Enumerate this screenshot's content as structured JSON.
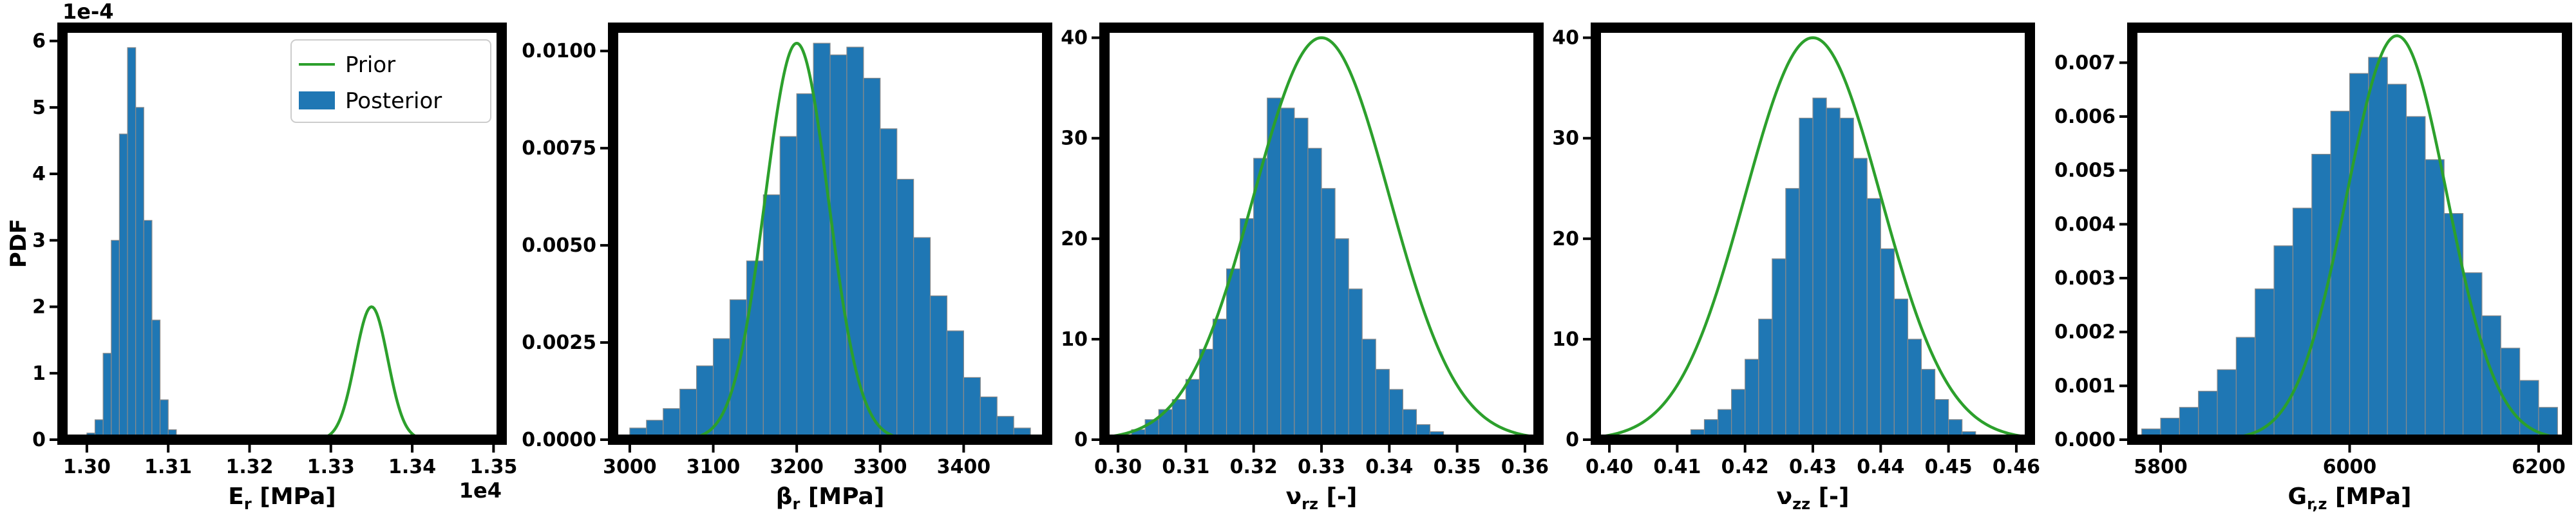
{
  "figure": {
    "ylabel": "PDF",
    "colors": {
      "posterior": "#1f77b4",
      "prior": "#2ca02c",
      "bar_edge": "#8a8a8a",
      "frame": "#000000"
    },
    "legend": {
      "prior_label": "Prior",
      "posterior_label": "Posterior",
      "placement": "upper-right of first panel"
    }
  },
  "chart_data": [
    {
      "type": "bar",
      "xlabel": "E_r [MPa]",
      "ylabel": "PDF",
      "x_offset_text": "1e4",
      "y_offset_text": "1e-4",
      "xlim": [
        1.297,
        1.351
      ],
      "ylim": [
        0,
        6.2
      ],
      "x_ticks": [
        1.3,
        1.31,
        1.32,
        1.33,
        1.34,
        1.35
      ],
      "x_tick_labels": [
        "1.30",
        "1.31",
        "1.32",
        "1.33",
        "1.34",
        "1.35"
      ],
      "y_ticks": [
        0,
        1,
        2,
        3,
        4,
        5,
        6
      ],
      "y_tick_labels": [
        "0",
        "1",
        "2",
        "3",
        "4",
        "5",
        "6"
      ],
      "posterior_hist": {
        "start": 1.3,
        "width": 0.001,
        "values": [
          0.1,
          0.3,
          1.3,
          3.0,
          4.6,
          5.9,
          5.0,
          3.3,
          1.8,
          0.6,
          0.15,
          0.05
        ]
      },
      "prior": {
        "mean": 1.335,
        "sd": 0.002,
        "peak": 2.0
      }
    },
    {
      "type": "bar",
      "xlabel": "β_r [MPa]",
      "xlim": [
        2980,
        3500
      ],
      "ylim": [
        0,
        0.0106
      ],
      "x_ticks": [
        3000,
        3100,
        3200,
        3300,
        3400
      ],
      "x_tick_labels": [
        "3000",
        "3100",
        "3200",
        "3300",
        "3400"
      ],
      "y_ticks": [
        0,
        0.0025,
        0.005,
        0.0075,
        0.01
      ],
      "y_tick_labels": [
        "0.0000",
        "0.0025",
        "0.0050",
        "0.0075",
        "0.0100"
      ],
      "posterior_hist": {
        "start": 3000,
        "width": 20,
        "values": [
          0.0003,
          0.0005,
          0.0008,
          0.0013,
          0.0019,
          0.0026,
          0.0036,
          0.0046,
          0.0063,
          0.0078,
          0.0089,
          0.0102,
          0.0099,
          0.0101,
          0.0093,
          0.008,
          0.0067,
          0.0052,
          0.0037,
          0.0028,
          0.0016,
          0.0011,
          0.0006,
          0.0003,
          0.0001
        ]
      },
      "prior": {
        "mean": 3200,
        "sd": 38,
        "peak": 0.0102
      }
    },
    {
      "type": "bar",
      "xlabel": "ν_rz [-]",
      "xlim": [
        0.298,
        0.362
      ],
      "ylim": [
        0,
        41
      ],
      "x_ticks": [
        0.3,
        0.31,
        0.32,
        0.33,
        0.34,
        0.35,
        0.36
      ],
      "x_tick_labels": [
        "0.30",
        "0.31",
        "0.32",
        "0.33",
        "0.34",
        "0.35",
        "0.36"
      ],
      "y_ticks": [
        0,
        10,
        20,
        30,
        40
      ],
      "y_tick_labels": [
        "0",
        "10",
        "20",
        "30",
        "40"
      ],
      "posterior_hist": {
        "start": 0.3,
        "width": 0.002,
        "values": [
          0.5,
          1.0,
          2.0,
          3.0,
          4.0,
          6.0,
          9.0,
          12.0,
          17.0,
          22.0,
          28.0,
          34.0,
          33.0,
          32.0,
          29.0,
          25.0,
          20.0,
          15.0,
          10.0,
          7.0,
          5.0,
          3.0,
          1.5,
          0.8,
          0.3
        ]
      },
      "prior": {
        "mean": 0.33,
        "sd": 0.01,
        "peak": 40
      }
    },
    {
      "type": "bar",
      "xlabel": "ν_zz [-]",
      "xlim": [
        0.398,
        0.462
      ],
      "ylim": [
        0,
        41
      ],
      "x_ticks": [
        0.4,
        0.41,
        0.42,
        0.43,
        0.44,
        0.45,
        0.46
      ],
      "x_tick_labels": [
        "0.40",
        "0.41",
        "0.42",
        "0.43",
        "0.44",
        "0.45",
        "0.46"
      ],
      "y_ticks": [
        0,
        10,
        20,
        30,
        40
      ],
      "y_tick_labels": [
        "0",
        "10",
        "20",
        "30",
        "40"
      ],
      "posterior_hist": {
        "start": 0.41,
        "width": 0.002,
        "values": [
          0.3,
          1.0,
          2.0,
          3.0,
          5.0,
          8.0,
          12.0,
          18.0,
          25.0,
          32.0,
          34.0,
          33.0,
          32.0,
          28.0,
          24.0,
          19.0,
          14.0,
          10.0,
          7.0,
          4.0,
          2.0,
          0.8
        ]
      },
      "prior": {
        "mean": 0.43,
        "sd": 0.01,
        "peak": 40
      }
    },
    {
      "type": "bar",
      "xlabel": "G_r,z [MPa]",
      "xlim": [
        5770,
        6230
      ],
      "ylim": [
        0,
        0.00765
      ],
      "x_ticks": [
        5800,
        6000,
        6200
      ],
      "x_tick_labels": [
        "5800",
        "6000",
        "6200"
      ],
      "y_ticks": [
        0,
        0.001,
        0.002,
        0.003,
        0.004,
        0.005,
        0.006,
        0.007
      ],
      "y_tick_labels": [
        "0.000",
        "0.001",
        "0.002",
        "0.003",
        "0.004",
        "0.005",
        "0.006",
        "0.007"
      ],
      "posterior_hist": {
        "start": 5780,
        "width": 20,
        "values": [
          0.0002,
          0.0004,
          0.0006,
          0.0009,
          0.0013,
          0.0019,
          0.0028,
          0.0036,
          0.0043,
          0.0053,
          0.0061,
          0.0068,
          0.0071,
          0.0066,
          0.006,
          0.0052,
          0.0042,
          0.0031,
          0.0023,
          0.0017,
          0.0011,
          0.0006
        ]
      },
      "prior": {
        "mean": 6050,
        "sd": 53,
        "peak": 0.0075
      }
    }
  ]
}
